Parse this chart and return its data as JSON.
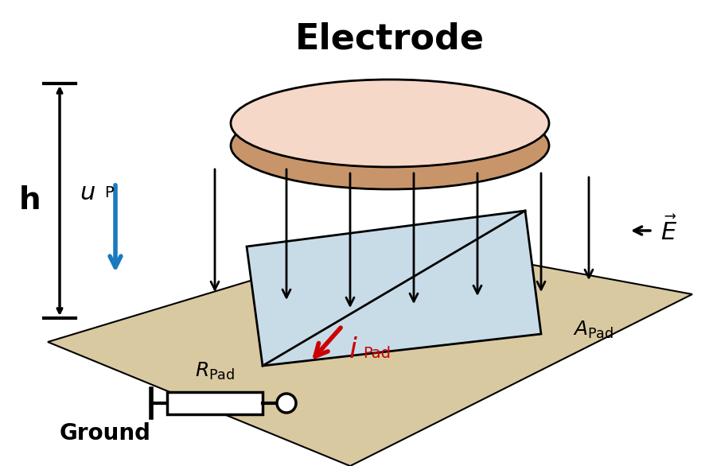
{
  "title": "Electrode",
  "bg_color": "#ffffff",
  "ground_plane_color": "#d9c9a0",
  "electrode_top_color": "#f5d8c8",
  "electrode_side_color": "#c8956a",
  "pad_color": "#c8dce8",
  "arrow_color": "#000000",
  "blue_arrow_color": "#1a7abf",
  "red_arrow_color": "#cc0000",
  "ground_label": "Ground",
  "h_label": "h",
  "up_label": "u",
  "up_subscript": "P",
  "e_label": "E",
  "apad_label": "A",
  "apad_subscript": "Pad",
  "rpad_label": "R",
  "rpad_subscript": "Pad",
  "ipad_label": "i",
  "ipad_subscript": "Pad"
}
